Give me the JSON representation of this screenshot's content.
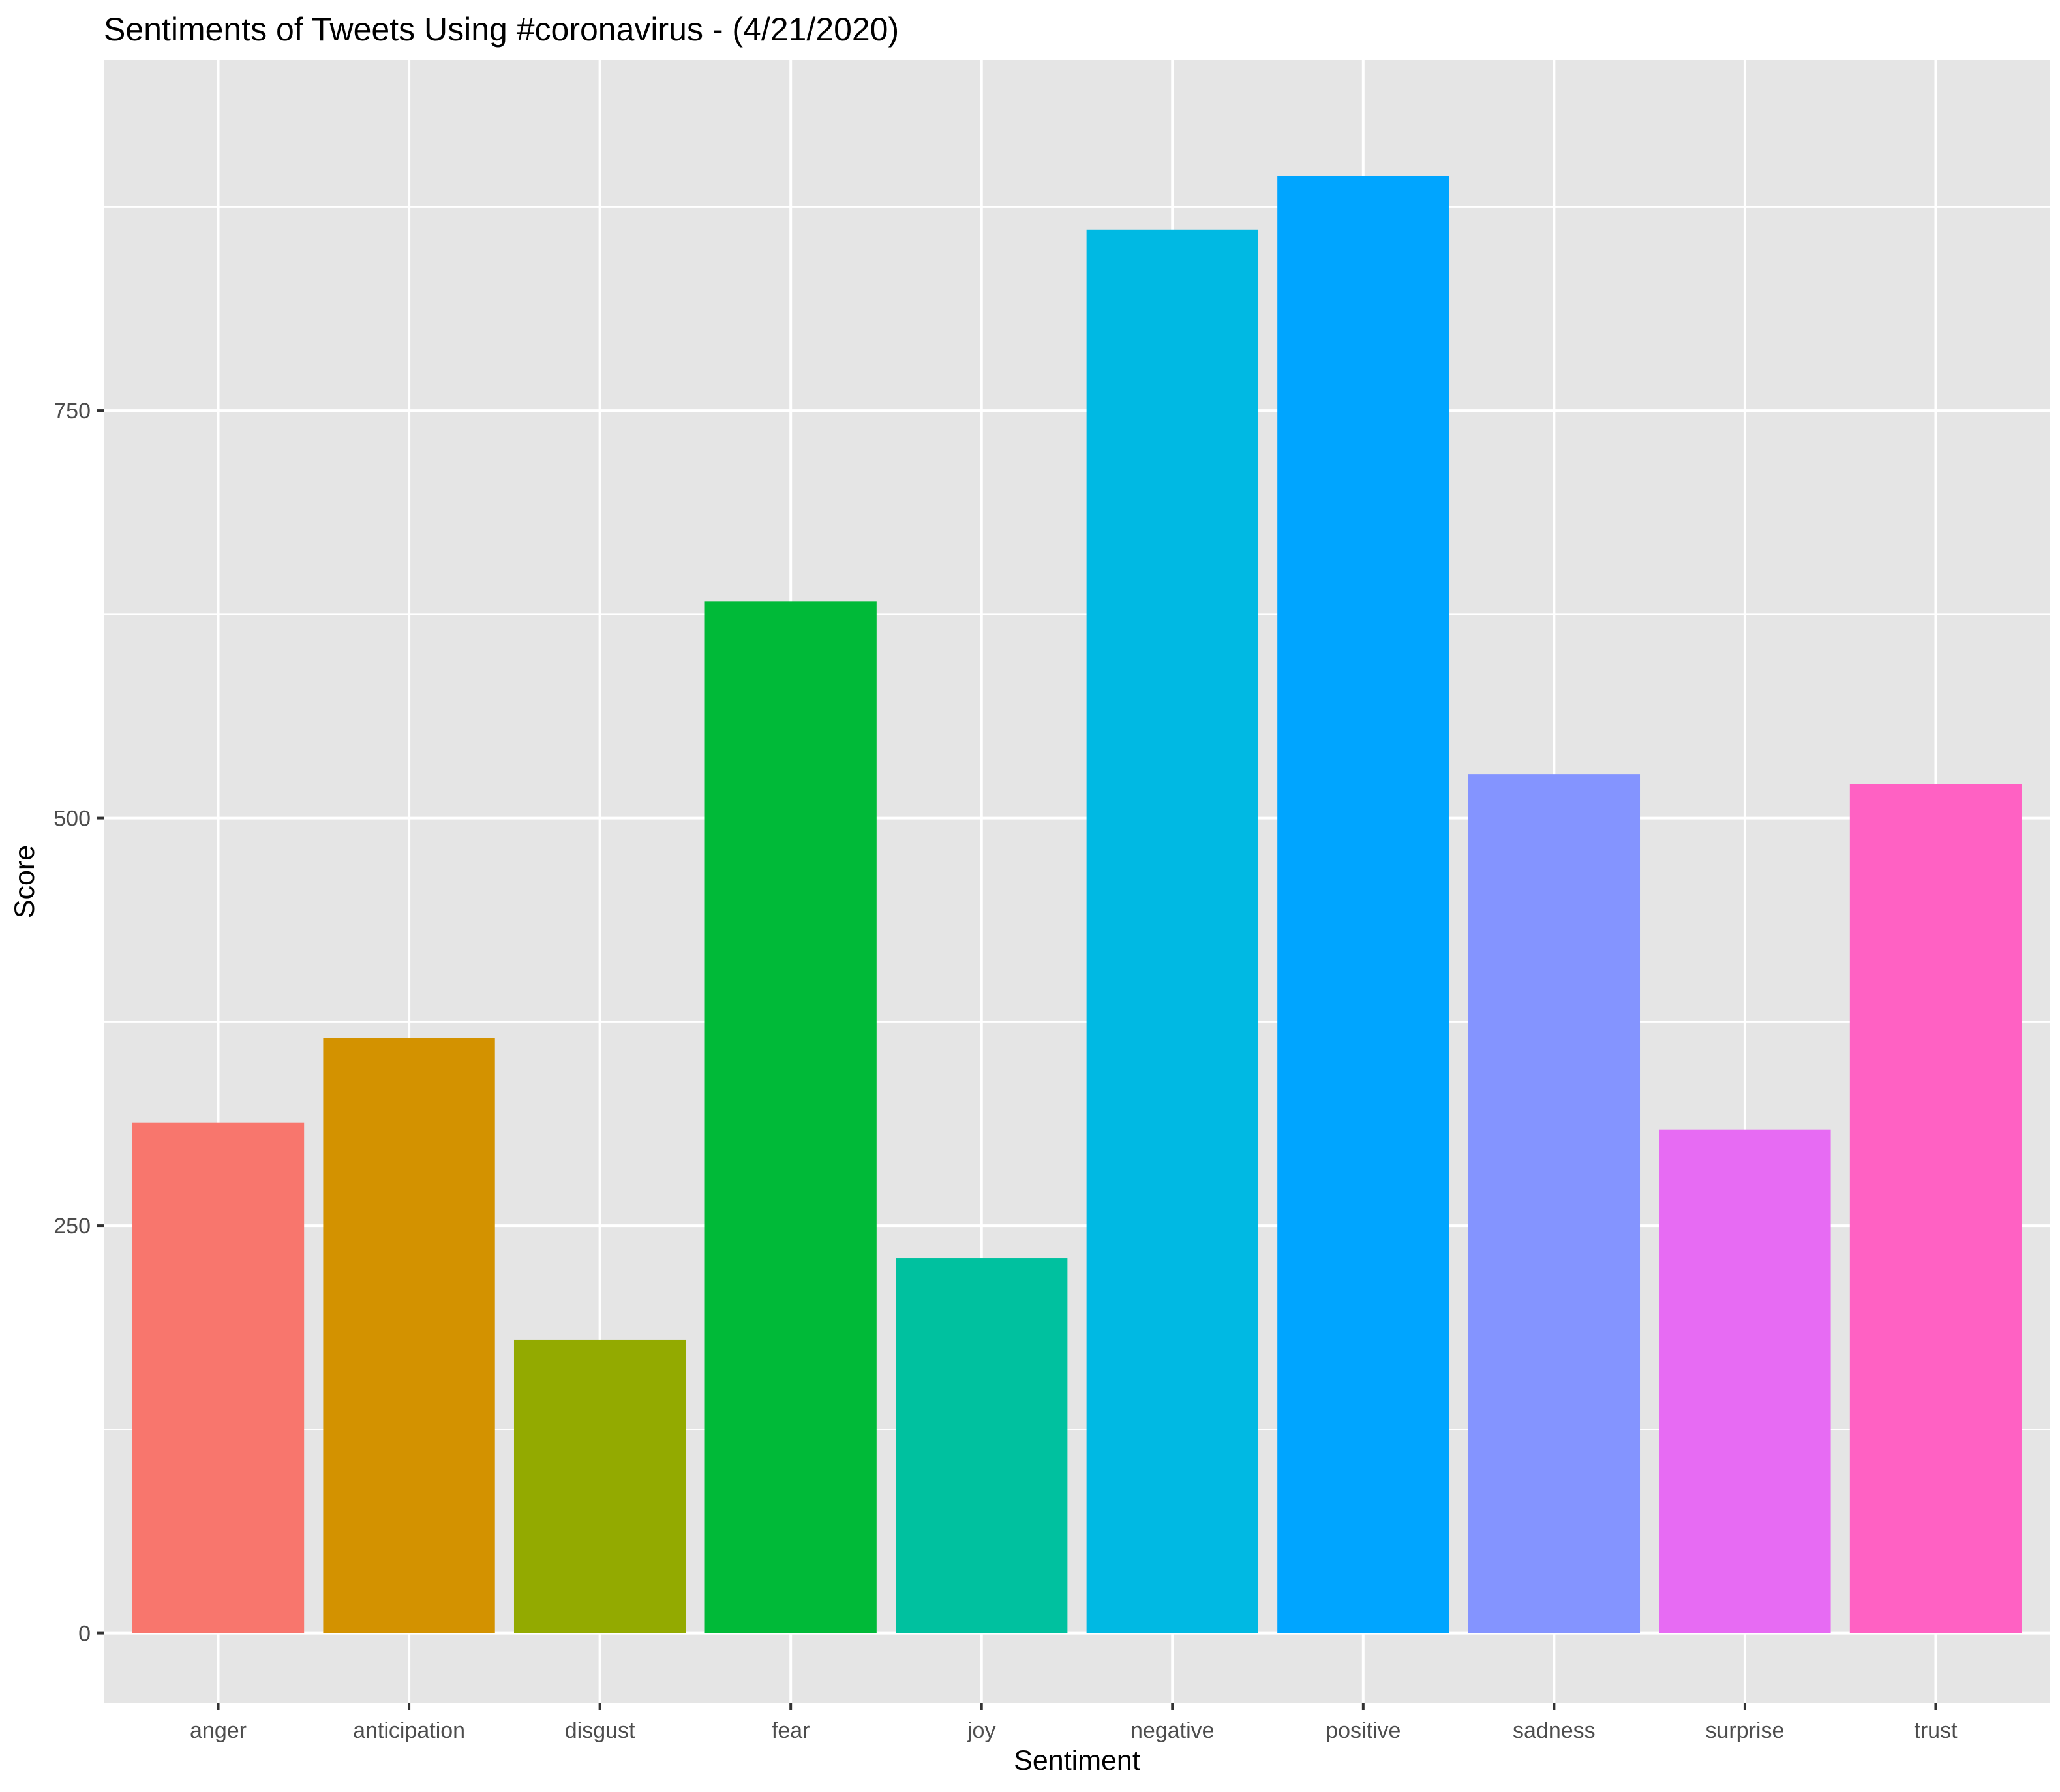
{
  "chart_data": {
    "type": "bar",
    "title": "Sentiments of Tweets Using #coronavirus - (4/21/2020)",
    "xlabel": "Sentiment",
    "ylabel": "Score",
    "categories": [
      "anger",
      "anticipation",
      "disgust",
      "fear",
      "joy",
      "negative",
      "positive",
      "sadness",
      "surprise",
      "trust"
    ],
    "values": [
      313,
      365,
      180,
      633,
      230,
      861,
      894,
      527,
      309,
      521
    ],
    "colors": [
      "#F8766D",
      "#D39200",
      "#93AA00",
      "#00BA38",
      "#00C19F",
      "#00B9E3",
      "#00A5FF",
      "#8494FF",
      "#E76BF3",
      "#FF61C3"
    ],
    "ylim": [
      -43,
      965
    ],
    "yticks": [
      0,
      250,
      500,
      750
    ],
    "ytick_labels": [
      "0",
      "250",
      "500",
      "750"
    ],
    "grid": true,
    "legend": "none",
    "panel_background": "#E5E5E5",
    "grid_color": "#FFFFFF"
  }
}
